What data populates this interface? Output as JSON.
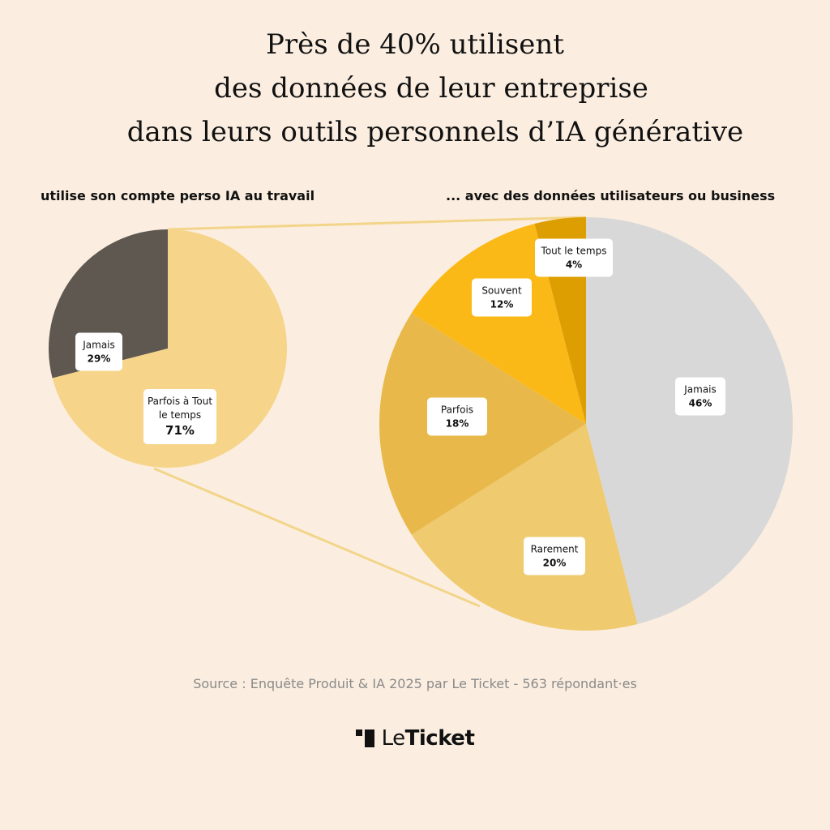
{
  "title": {
    "line1": "Près de 40% utilisent",
    "line2": "des données de leur entreprise",
    "line3": "dans leurs outils personnels d’IA générative"
  },
  "chart_data": [
    {
      "type": "pie",
      "title": "utilise son compte perso IA au travail",
      "slices": [
        {
          "label": "Jamais",
          "value": 29,
          "value_label": "29%",
          "color": "#5f5850"
        },
        {
          "label": "Parfois à Tout le temps",
          "value": 71,
          "value_label": "71%",
          "color": "#f6d58a"
        }
      ]
    },
    {
      "type": "pie",
      "title": "... avec des données utilisateurs ou business",
      "slices": [
        {
          "label": "Jamais",
          "value": 46,
          "value_label": "46%",
          "color": "#d8d8d8"
        },
        {
          "label": "Rarement",
          "value": 20,
          "value_label": "20%",
          "color": "#efca6e"
        },
        {
          "label": "Parfois",
          "value": 18,
          "value_label": "18%",
          "color": "#e8b94a"
        },
        {
          "label": "Souvent",
          "value": 12,
          "value_label": "12%",
          "color": "#fbb917"
        },
        {
          "label": "Tout le temps",
          "value": 4,
          "value_label": "4%",
          "color": "#dc9e00"
        }
      ]
    }
  ],
  "source": "Source : Enquête Produit & IA 2025 par Le Ticket - 563 répondant·es",
  "logo": {
    "part1": "Le",
    "part2": "Ticket"
  },
  "colors": {
    "background": "#fbeee0",
    "connector": "#f2d58a"
  }
}
